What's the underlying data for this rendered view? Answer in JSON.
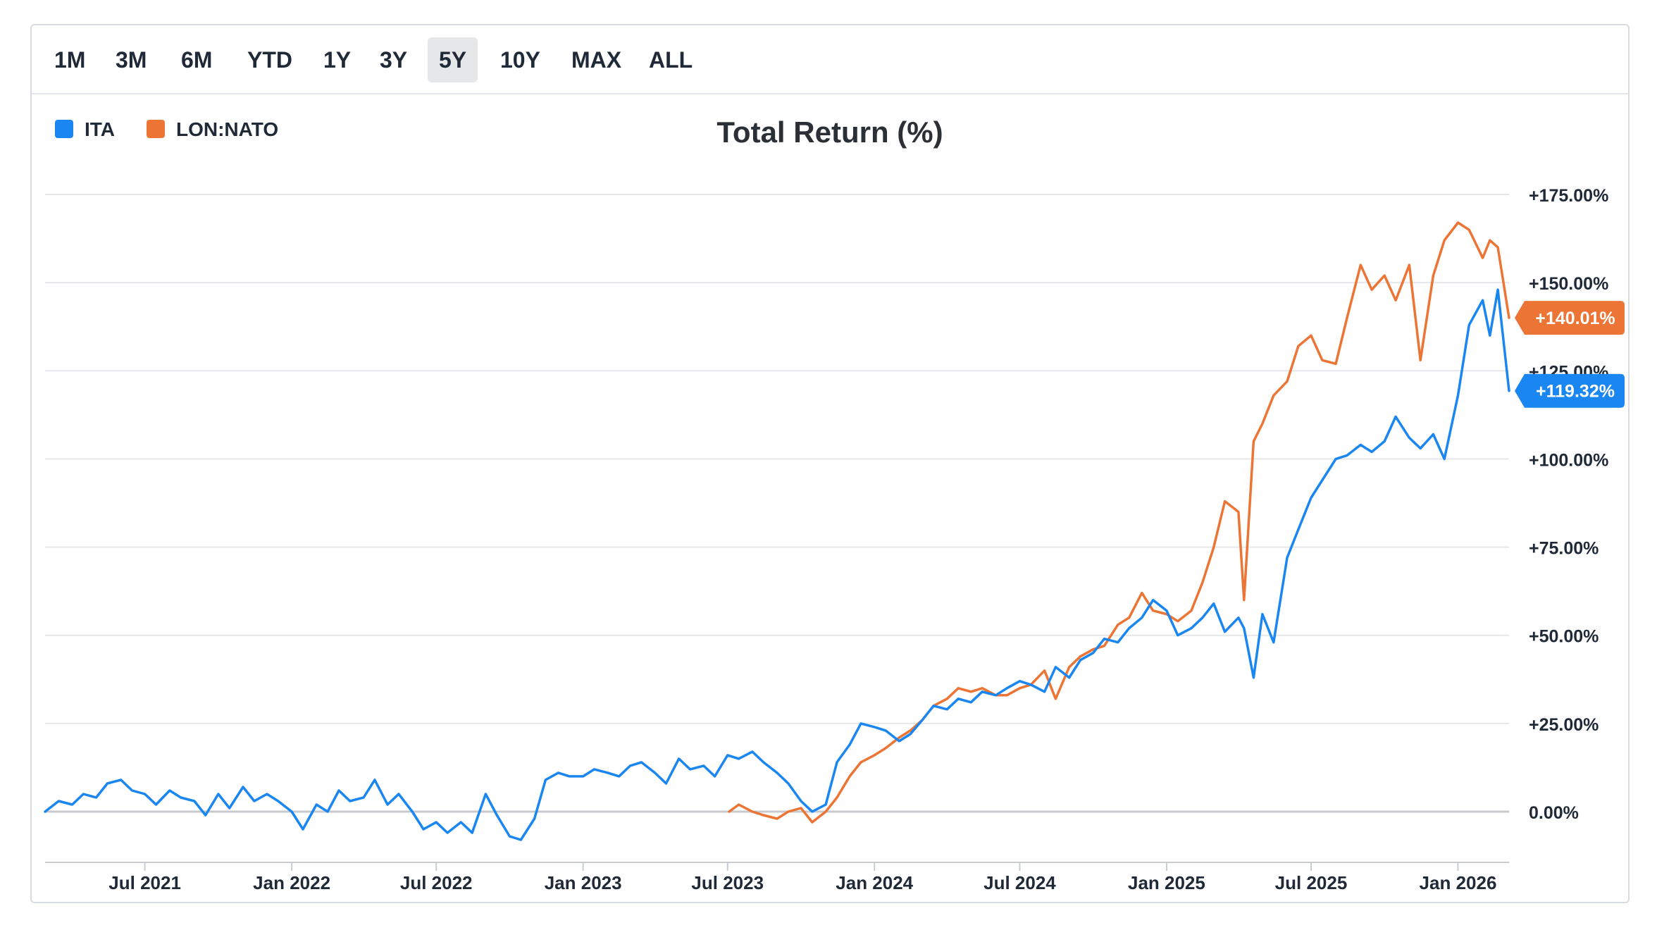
{
  "toolbar": {
    "ranges": [
      "1M",
      "3M",
      "6M",
      "YTD",
      "1Y",
      "3Y",
      "5Y",
      "10Y",
      "MAX",
      "ALL"
    ],
    "active": "5Y"
  },
  "colors": {
    "ita": "#1a86f2",
    "nato": "#ec7535",
    "grid": "#e5e7eb",
    "zero": "#c7c9cc"
  },
  "chart_data": {
    "type": "line",
    "title": "Total Return (%)",
    "xlabel": "",
    "ylabel": "",
    "ylim": [
      -25,
      187
    ],
    "y_ticks": [
      0,
      25,
      50,
      75,
      100,
      125,
      150,
      175
    ],
    "y_tick_labels": [
      "0.00%",
      "+25.00%",
      "+50.00%",
      "+75.00%",
      "+100.00%",
      "+125.00%",
      "+150.00%",
      "+175.00%"
    ],
    "x_range": [
      "2021-02-26",
      "2026-03-06"
    ],
    "x_ticks": [
      "2021-07-01",
      "2022-01-01",
      "2022-07-01",
      "2023-01-01",
      "2023-07-01",
      "2024-01-01",
      "2024-07-01",
      "2025-01-01",
      "2025-07-01",
      "2026-01-01"
    ],
    "x_tick_labels": [
      "Jul 2021",
      "Jan 2022",
      "Jul 2022",
      "Jan 2023",
      "Jul 2023",
      "Jan 2024",
      "Jul 2024",
      "Jan 2025",
      "Jul 2025",
      "Jan 2026"
    ],
    "grid": true,
    "legend_position": "top-left",
    "series": [
      {
        "name": "ITA",
        "color": "#1a86f2",
        "last_label": "+119.32%",
        "x": [
          "2021-02-26",
          "2021-03-15",
          "2021-04-01",
          "2021-04-15",
          "2021-05-01",
          "2021-05-15",
          "2021-06-01",
          "2021-06-15",
          "2021-07-01",
          "2021-07-15",
          "2021-08-01",
          "2021-08-15",
          "2021-09-01",
          "2021-09-15",
          "2021-10-01",
          "2021-10-15",
          "2021-11-01",
          "2021-11-15",
          "2021-12-01",
          "2021-12-15",
          "2022-01-01",
          "2022-01-15",
          "2022-02-01",
          "2022-02-15",
          "2022-03-01",
          "2022-03-15",
          "2022-04-01",
          "2022-04-15",
          "2022-05-01",
          "2022-05-15",
          "2022-06-01",
          "2022-06-15",
          "2022-07-01",
          "2022-07-15",
          "2022-08-01",
          "2022-08-15",
          "2022-09-01",
          "2022-09-15",
          "2022-10-01",
          "2022-10-15",
          "2022-11-01",
          "2022-11-15",
          "2022-12-01",
          "2022-12-15",
          "2023-01-01",
          "2023-01-15",
          "2023-02-01",
          "2023-02-15",
          "2023-03-01",
          "2023-03-15",
          "2023-04-01",
          "2023-04-15",
          "2023-05-01",
          "2023-05-15",
          "2023-06-01",
          "2023-06-15",
          "2023-07-01",
          "2023-07-15",
          "2023-08-01",
          "2023-08-15",
          "2023-09-01",
          "2023-09-15",
          "2023-10-01",
          "2023-10-15",
          "2023-11-01",
          "2023-11-15",
          "2023-12-01",
          "2023-12-15",
          "2024-01-01",
          "2024-01-15",
          "2024-02-01",
          "2024-02-15",
          "2024-03-01",
          "2024-03-15",
          "2024-04-01",
          "2024-04-15",
          "2024-05-01",
          "2024-05-15",
          "2024-06-01",
          "2024-06-15",
          "2024-07-01",
          "2024-07-15",
          "2024-08-01",
          "2024-08-15",
          "2024-09-01",
          "2024-09-15",
          "2024-10-01",
          "2024-10-15",
          "2024-11-01",
          "2024-11-15",
          "2024-12-01",
          "2024-12-15",
          "2025-01-01",
          "2025-01-15",
          "2025-02-01",
          "2025-02-15",
          "2025-03-01",
          "2025-03-15",
          "2025-04-01",
          "2025-04-08",
          "2025-04-20",
          "2025-05-01",
          "2025-05-15",
          "2025-06-01",
          "2025-06-15",
          "2025-07-01",
          "2025-07-15",
          "2025-08-01",
          "2025-08-15",
          "2025-09-01",
          "2025-09-15",
          "2025-10-01",
          "2025-10-15",
          "2025-11-01",
          "2025-11-15",
          "2025-12-01",
          "2025-12-15",
          "2026-01-01",
          "2026-01-15",
          "2026-02-01",
          "2026-02-10",
          "2026-02-20",
          "2026-03-06"
        ],
        "values": [
          0,
          3,
          2,
          5,
          4,
          8,
          9,
          6,
          5,
          2,
          6,
          4,
          3,
          -1,
          5,
          1,
          7,
          3,
          5,
          3,
          0,
          -5,
          2,
          0,
          6,
          3,
          4,
          9,
          2,
          5,
          0,
          -5,
          -3,
          -6,
          -3,
          -6,
          5,
          -1,
          -7,
          -8,
          -2,
          9,
          11,
          10,
          10,
          12,
          11,
          10,
          13,
          14,
          11,
          8,
          15,
          12,
          13,
          10,
          16,
          15,
          17,
          14,
          11,
          8,
          3,
          0,
          2,
          14,
          19,
          25,
          24,
          23,
          20,
          22,
          26,
          30,
          29,
          32,
          31,
          34,
          33,
          35,
          37,
          36,
          34,
          41,
          38,
          43,
          45,
          49,
          48,
          52,
          55,
          60,
          57,
          50,
          52,
          55,
          59,
          51,
          55,
          52,
          38,
          56,
          48,
          72,
          80,
          89,
          94,
          100,
          101,
          104,
          102,
          105,
          112,
          106,
          103,
          107,
          100,
          118,
          138,
          145,
          135,
          148,
          119.32
        ]
      },
      {
        "name": "LON:NATO",
        "color": "#ec7535",
        "last_label": "+140.01%",
        "x": [
          "2023-07-03",
          "2023-07-15",
          "2023-08-01",
          "2023-08-15",
          "2023-09-01",
          "2023-09-15",
          "2023-10-01",
          "2023-10-15",
          "2023-11-01",
          "2023-11-15",
          "2023-12-01",
          "2023-12-15",
          "2024-01-01",
          "2024-01-15",
          "2024-02-01",
          "2024-02-15",
          "2024-03-01",
          "2024-03-15",
          "2024-04-01",
          "2024-04-15",
          "2024-05-01",
          "2024-05-15",
          "2024-06-01",
          "2024-06-15",
          "2024-07-01",
          "2024-07-15",
          "2024-08-01",
          "2024-08-15",
          "2024-09-01",
          "2024-09-15",
          "2024-10-01",
          "2024-10-15",
          "2024-11-01",
          "2024-11-15",
          "2024-12-01",
          "2024-12-15",
          "2025-01-01",
          "2025-01-15",
          "2025-02-01",
          "2025-02-15",
          "2025-03-01",
          "2025-03-15",
          "2025-04-01",
          "2025-04-08",
          "2025-04-20",
          "2025-05-01",
          "2025-05-15",
          "2025-06-01",
          "2025-06-15",
          "2025-07-01",
          "2025-07-15",
          "2025-08-01",
          "2025-08-15",
          "2025-09-01",
          "2025-09-15",
          "2025-10-01",
          "2025-10-15",
          "2025-11-01",
          "2025-11-15",
          "2025-12-01",
          "2025-12-15",
          "2026-01-01",
          "2026-01-15",
          "2026-02-01",
          "2026-02-10",
          "2026-02-20",
          "2026-03-06"
        ],
        "values": [
          0,
          2,
          0,
          -1,
          -2,
          0,
          1,
          -3,
          0,
          4,
          10,
          14,
          16,
          18,
          21,
          23,
          26,
          30,
          32,
          35,
          34,
          35,
          33,
          33,
          35,
          36,
          40,
          32,
          41,
          44,
          46,
          47,
          53,
          55,
          62,
          57,
          56,
          54,
          57,
          65,
          75,
          88,
          85,
          60,
          105,
          110,
          118,
          122,
          132,
          135,
          128,
          127,
          140,
          155,
          148,
          152,
          145,
          155,
          128,
          152,
          162,
          167,
          165,
          157,
          162,
          160,
          140.01
        ]
      }
    ]
  }
}
